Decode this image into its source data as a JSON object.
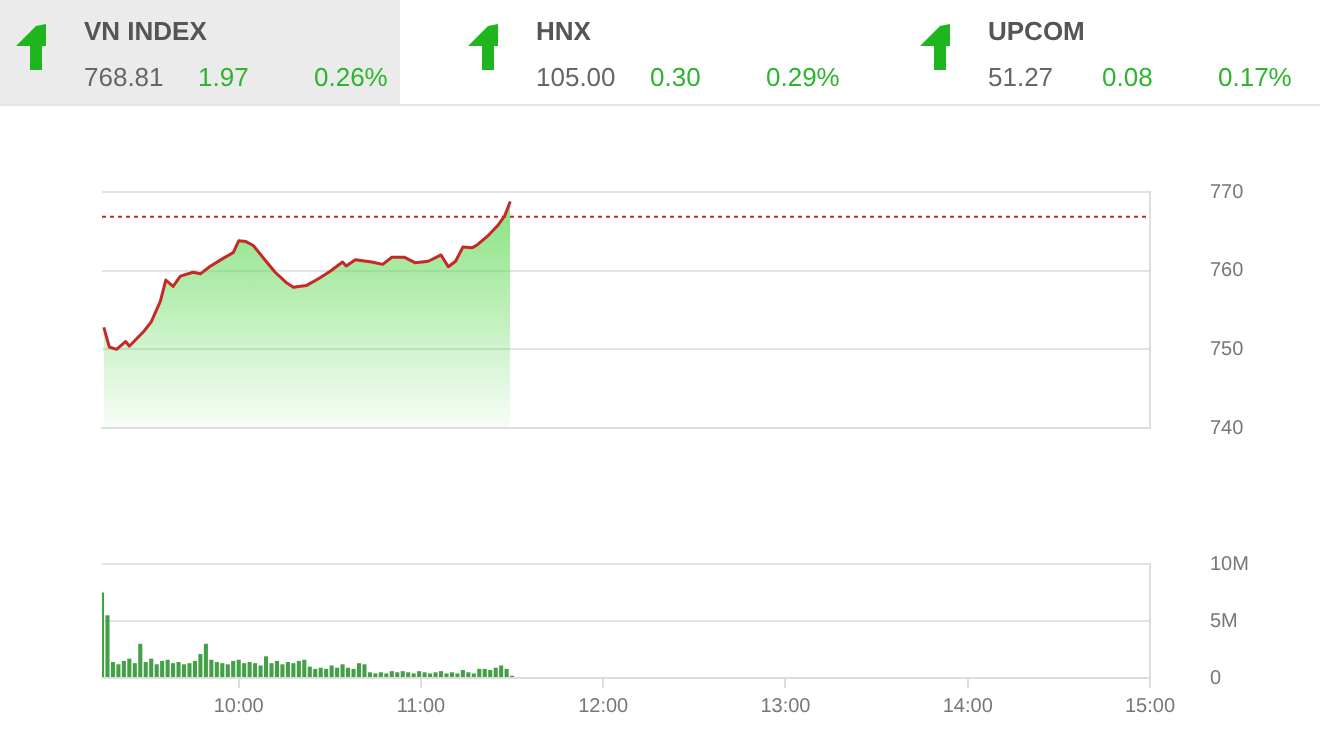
{
  "chart_data": [
    {
      "type": "other",
      "annotations": [
        "VN INDEX",
        "768.81",
        "1.97",
        "0.26%",
        "HNX",
        "105.00",
        "0.30",
        "0.29%",
        "UPCOM",
        "51.27",
        "0.08",
        "0.17%"
      ]
    },
    {
      "type": "area",
      "x": [
        9.26,
        9.29,
        9.33,
        9.38,
        9.4,
        9.48,
        9.52,
        9.57,
        9.6,
        9.64,
        9.68,
        9.75,
        9.79,
        9.84,
        9.91,
        9.97,
        10.0,
        10.04,
        10.08,
        10.15,
        10.2,
        10.26,
        10.3,
        10.37,
        10.44,
        10.5,
        10.57,
        10.59,
        10.64,
        10.73,
        10.79,
        10.84,
        10.91,
        10.97,
        11.04,
        11.11,
        11.15,
        11.19,
        11.23,
        11.28,
        11.31,
        11.37,
        11.42,
        11.46,
        11.49
      ],
      "series": [
        {
          "color": "#c62828",
          "values": [
            752.8,
            750.3,
            750.0,
            751.0,
            750.4,
            752.3,
            753.5,
            756.1,
            758.8,
            758.0,
            759.3,
            759.8,
            759.6,
            760.5,
            761.5,
            762.3,
            763.8,
            763.7,
            763.2,
            761.2,
            759.8,
            758.5,
            757.9,
            758.1,
            759.0,
            759.9,
            761.1,
            760.6,
            761.4,
            761.1,
            760.8,
            761.7,
            761.7,
            761.0,
            761.2,
            762.0,
            760.5,
            761.2,
            763.0,
            762.9,
            763.3,
            764.5,
            765.7,
            767.0,
            768.8
          ]
        }
      ],
      "xlim": [
        9.25,
        15
      ],
      "ylim": [
        740,
        770
      ],
      "yticks": [
        740,
        750,
        760,
        770
      ],
      "tick_labels": "y",
      "grid": "y",
      "legend": false,
      "ref_lines": [
        {
          "axis": "y",
          "value": 766.84,
          "color": "#c62828",
          "line_style": "dotted"
        }
      ]
    },
    {
      "type": "bar",
      "x": [
        9.25,
        9.28,
        9.31,
        9.34,
        9.37,
        9.4,
        9.43,
        9.46,
        9.49,
        9.52,
        9.55,
        9.58,
        9.61,
        9.64,
        9.67,
        9.7,
        9.73,
        9.76,
        9.79,
        9.82,
        9.85,
        9.88,
        9.91,
        9.94,
        9.97,
        10.0,
        10.03,
        10.06,
        10.09,
        10.12,
        10.15,
        10.18,
        10.21,
        10.24,
        10.27,
        10.3,
        10.33,
        10.36,
        10.39,
        10.42,
        10.45,
        10.48,
        10.51,
        10.54,
        10.57,
        10.6,
        10.63,
        10.66,
        10.69,
        10.72,
        10.75,
        10.78,
        10.81,
        10.84,
        10.87,
        10.9,
        10.93,
        10.96,
        10.99,
        11.02,
        11.05,
        11.08,
        11.11,
        11.14,
        11.17,
        11.2,
        11.23,
        11.26,
        11.29,
        11.32,
        11.35,
        11.38,
        11.41,
        11.44,
        11.47,
        11.5
      ],
      "series": [
        {
          "color": "#43a047",
          "values": [
            7.5,
            5.5,
            1.4,
            1.2,
            1.5,
            1.7,
            1.3,
            3.0,
            1.4,
            1.7,
            1.2,
            1.5,
            1.6,
            1.3,
            1.4,
            1.2,
            1.3,
            1.5,
            2.1,
            3.0,
            1.6,
            1.4,
            1.3,
            1.2,
            1.5,
            1.6,
            1.3,
            1.4,
            1.3,
            1.1,
            1.9,
            1.3,
            1.5,
            1.2,
            1.4,
            1.3,
            1.5,
            1.6,
            1.0,
            0.8,
            0.9,
            0.8,
            1.1,
            0.9,
            1.2,
            0.9,
            0.8,
            1.3,
            1.2,
            0.5,
            0.4,
            0.5,
            0.4,
            0.6,
            0.5,
            0.6,
            0.5,
            0.4,
            0.6,
            0.5,
            0.4,
            0.5,
            0.6,
            0.4,
            0.5,
            0.4,
            0.7,
            0.5,
            0.4,
            0.8,
            0.8,
            0.7,
            0.9,
            1.1,
            0.8,
            0.2
          ]
        }
      ],
      "xlim": [
        9.25,
        15
      ],
      "xticks": [
        {
          "value": 10,
          "label": "10:00"
        },
        {
          "value": 11,
          "label": "11:00"
        },
        {
          "value": 12,
          "label": "12:00"
        },
        {
          "value": 13,
          "label": "13:00"
        },
        {
          "value": 14,
          "label": "14:00"
        },
        {
          "value": 15,
          "label": "15:00"
        }
      ],
      "ylim": [
        0,
        10
      ],
      "yticks": [
        {
          "value": 0,
          "label": "0"
        },
        {
          "value": 5,
          "label": "5M"
        },
        {
          "value": 10,
          "label": "10M"
        }
      ],
      "grid": "y",
      "legend": false
    }
  ]
}
